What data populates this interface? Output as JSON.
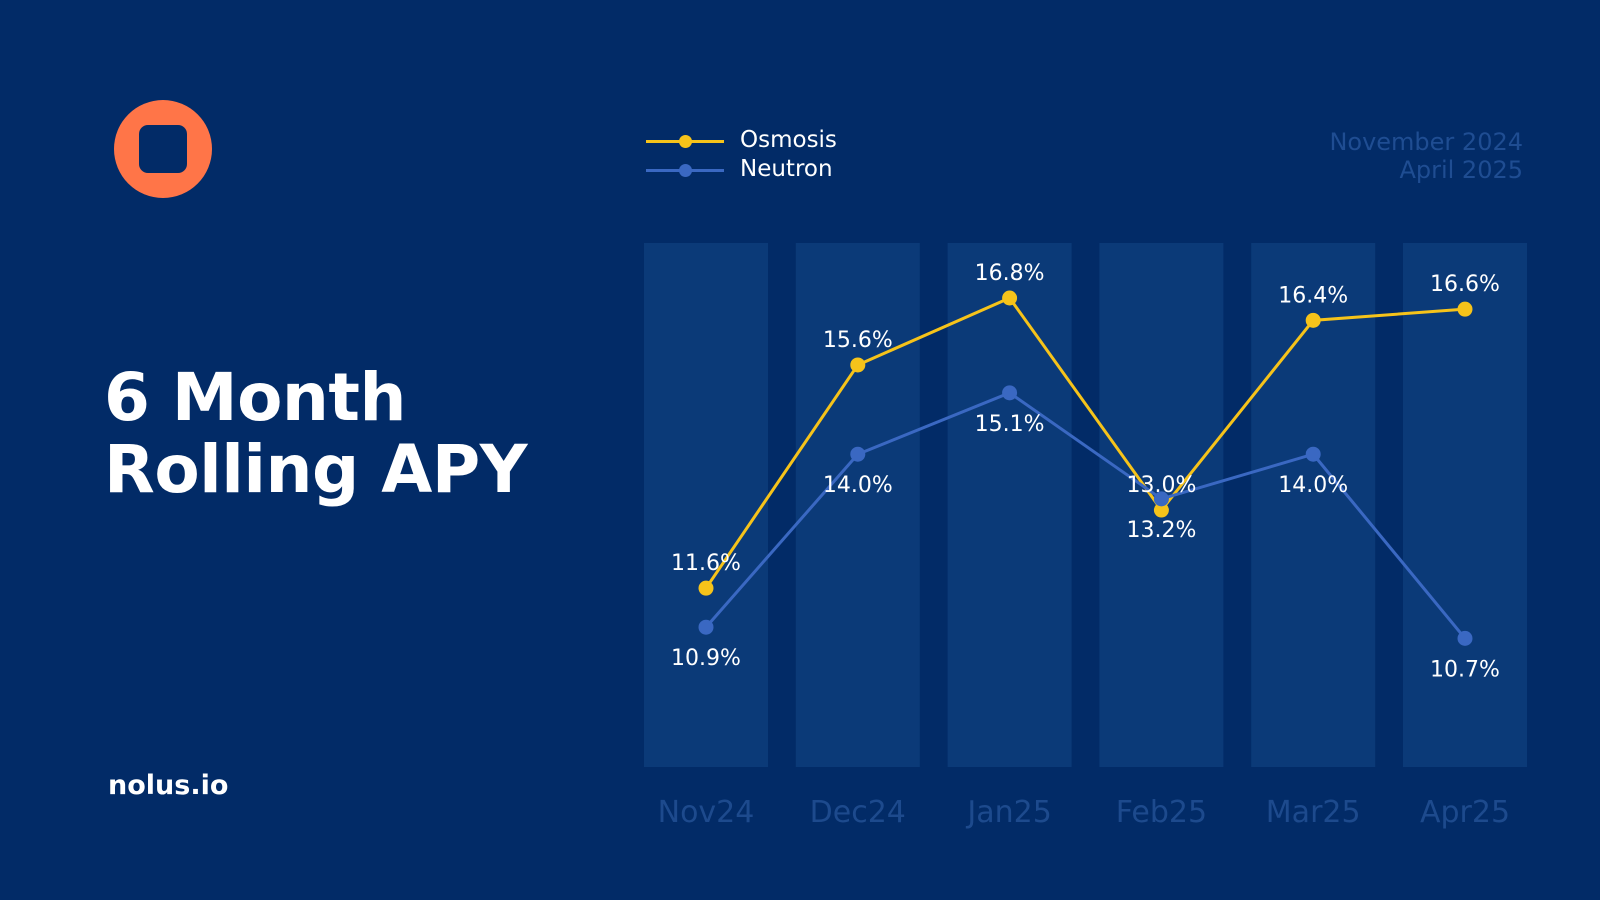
{
  "brand": {
    "logo_color": "#FF7548",
    "site": "nolus.io"
  },
  "title_lines": [
    "6 Month",
    "Rolling APY"
  ],
  "date_range": {
    "start": "November 2024",
    "end": "April 2025"
  },
  "chart_data": {
    "type": "line",
    "categories": [
      "Nov24",
      "Dec24",
      "Jan25",
      "Feb25",
      "Mar25",
      "Apr25"
    ],
    "series": [
      {
        "name": "Osmosis",
        "color": "#F6C31A",
        "values": [
          11.6,
          15.6,
          16.8,
          13.0,
          16.4,
          16.6
        ],
        "labels": [
          "11.6%",
          "15.6%",
          "16.8%",
          "13.0%",
          "16.4%",
          "16.6%"
        ]
      },
      {
        "name": "Neutron",
        "color": "#3A68C2",
        "values": [
          10.9,
          14.0,
          15.1,
          13.2,
          14.0,
          10.7
        ],
        "labels": [
          "10.9%",
          "14.0%",
          "15.1%",
          "13.2%",
          "14.0%",
          "10.7%"
        ]
      }
    ],
    "legend": "top-left",
    "grid": false,
    "background_bars": true
  }
}
